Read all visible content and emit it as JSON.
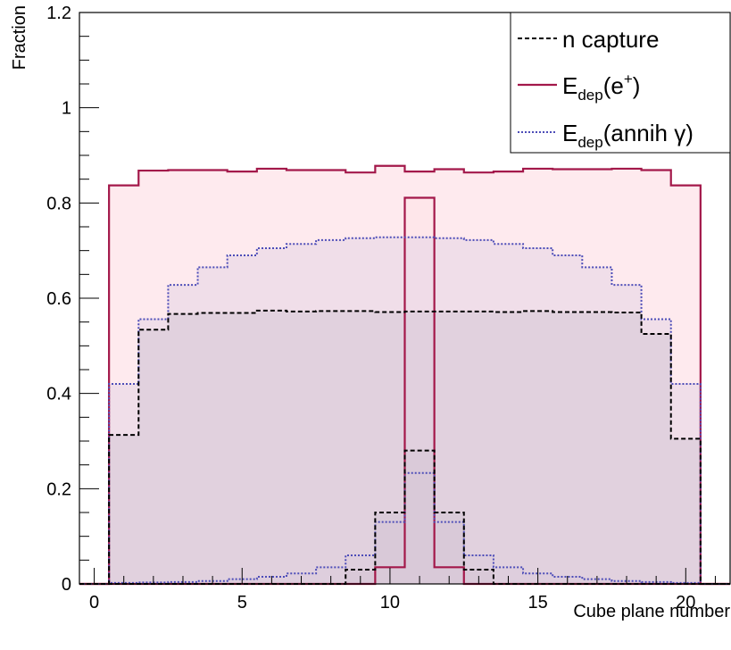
{
  "chart_data": {
    "type": "histogram",
    "title": "",
    "xlabel": "Cube plane number",
    "ylabel": "Fraction",
    "xlim": [
      -0.5,
      21.5
    ],
    "ylim": [
      0,
      1.2
    ],
    "xticks": [
      0,
      5,
      10,
      15,
      20
    ],
    "yticks": [
      0,
      0.2,
      0.4,
      0.6,
      0.8,
      1,
      1.2
    ],
    "ytick_labels": [
      "0",
      "0.2",
      "0.4",
      "0.6",
      "0.8",
      "1",
      "1.2"
    ],
    "bins": [
      0,
      1,
      2,
      3,
      4,
      5,
      6,
      7,
      8,
      9,
      10,
      11,
      12,
      13,
      14,
      15,
      16,
      17,
      18,
      19,
      20,
      21
    ],
    "legend_position": "top-right",
    "series": [
      {
        "name": "E_dep(e+)",
        "legend_main": "E",
        "legend_sub": "dep",
        "legend_arg": "(e",
        "legend_sup": "+",
        "legend_close": ")",
        "line_color": "#a3184a",
        "fill_color": "#fde3e8",
        "line_style": "solid",
        "values_total": [
          0,
          0.837,
          0.868,
          0.869,
          0.869,
          0.866,
          0.872,
          0.869,
          0.869,
          0.864,
          0.878,
          0.866,
          0.871,
          0.864,
          0.866,
          0.872,
          0.871,
          0.871,
          0.872,
          0.869,
          0.837,
          0
        ],
        "values_central": [
          0,
          0,
          0,
          0,
          0,
          0,
          0,
          0,
          0,
          0,
          0.035,
          0.811,
          0.035,
          0,
          0,
          0,
          0,
          0,
          0,
          0,
          0,
          0
        ]
      },
      {
        "name": "E_dep(annih γ)",
        "legend_main": "E",
        "legend_sub": "dep",
        "legend_arg": "(annih γ)",
        "line_color": "#4d4db8",
        "fill_color": "#e3d4e6",
        "line_style": "dotted",
        "values_total": [
          0,
          0.42,
          0.556,
          0.628,
          0.665,
          0.69,
          0.705,
          0.714,
          0.722,
          0.726,
          0.728,
          0.728,
          0.726,
          0.722,
          0.714,
          0.705,
          0.69,
          0.665,
          0.628,
          0.556,
          0.42,
          0
        ],
        "values_central": [
          0,
          0.002,
          0.003,
          0.004,
          0.006,
          0.01,
          0.015,
          0.022,
          0.035,
          0.06,
          0.13,
          0.233,
          0.13,
          0.06,
          0.035,
          0.022,
          0.015,
          0.01,
          0.006,
          0.004,
          0.002,
          0
        ]
      },
      {
        "name": "n capture",
        "legend_main": "n capture",
        "line_color": "#000000",
        "fill_color": "#d6c7d6",
        "line_style": "dashed",
        "values_total": [
          0,
          0.313,
          0.534,
          0.567,
          0.569,
          0.569,
          0.574,
          0.572,
          0.573,
          0.573,
          0.571,
          0.572,
          0.572,
          0.572,
          0.571,
          0.573,
          0.571,
          0.571,
          0.57,
          0.525,
          0.305,
          0
        ],
        "values_central": [
          0,
          0,
          0,
          0,
          0,
          0,
          0,
          0,
          0,
          0.03,
          0.15,
          0.28,
          0.15,
          0.03,
          0,
          0,
          0,
          0,
          0,
          0,
          0,
          0
        ]
      }
    ]
  }
}
